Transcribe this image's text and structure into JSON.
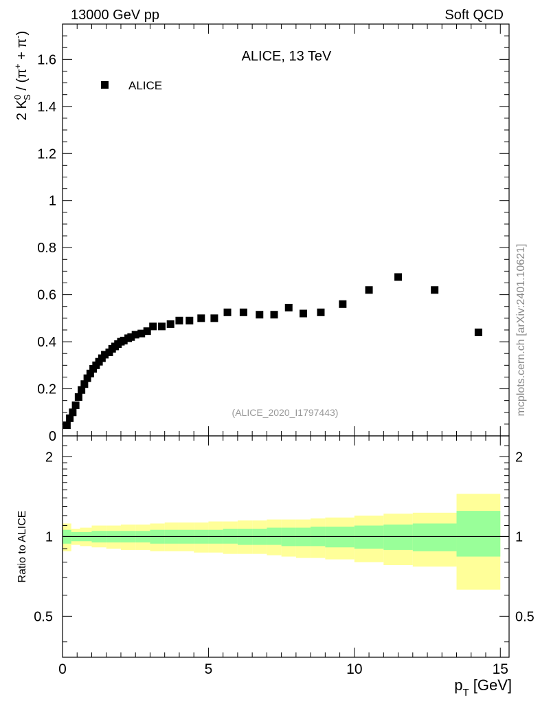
{
  "header": {
    "left": "13000 GeV pp",
    "right": "Soft QCD"
  },
  "side_label": "mcplots.cern.ch [arXiv:2401.10621]",
  "chart_data": [
    {
      "type": "scatter",
      "title": "ALICE, 13 TeV",
      "ylabel": {
        "prefix": "2 K",
        "sup_k": "0",
        "sub_k": "S",
        "mid": " / (π",
        "sup_plus": "+",
        "plus": " + π",
        "sup_minus": "-",
        "close": ")"
      },
      "xlim": [
        0,
        15.3
      ],
      "ylim": [
        0,
        1.75
      ],
      "yticks": [
        0,
        0.2,
        0.4,
        0.6,
        0.8,
        1,
        1.2,
        1.4,
        1.6
      ],
      "ytick_labels": [
        "0",
        "0.2",
        "0.4",
        "0.6",
        "0.8",
        "1",
        "1.2",
        "1.4",
        "1.6"
      ],
      "legend": {
        "label": "ALICE",
        "position": "top-left"
      },
      "watermark": "(ALICE_2020_I1797443)",
      "series": [
        {
          "name": "ALICE",
          "marker": "square",
          "color": "#000000",
          "x": [
            0.15,
            0.25,
            0.35,
            0.45,
            0.55,
            0.65,
            0.75,
            0.85,
            0.95,
            1.05,
            1.15,
            1.25,
            1.35,
            1.45,
            1.6,
            1.7,
            1.8,
            1.9,
            2.0,
            2.1,
            2.25,
            2.35,
            2.5,
            2.7,
            2.9,
            3.1,
            3.4,
            3.7,
            4.0,
            4.35,
            4.75,
            5.2,
            5.65,
            6.2,
            6.75,
            7.25,
            7.75,
            8.25,
            8.85,
            9.6,
            10.5,
            11.5,
            12.75,
            14.25
          ],
          "y": [
            0.045,
            0.075,
            0.1,
            0.13,
            0.165,
            0.195,
            0.22,
            0.245,
            0.265,
            0.285,
            0.3,
            0.315,
            0.33,
            0.345,
            0.355,
            0.37,
            0.38,
            0.39,
            0.4,
            0.405,
            0.415,
            0.42,
            0.43,
            0.435,
            0.445,
            0.465,
            0.465,
            0.475,
            0.49,
            0.49,
            0.5,
            0.5,
            0.525,
            0.525,
            0.515,
            0.515,
            0.545,
            0.52,
            0.525,
            0.56,
            0.62,
            0.675,
            0.62,
            0.44
          ]
        }
      ]
    },
    {
      "type": "area",
      "ylabel": "Ratio to ALICE",
      "xlabel": {
        "main": "p",
        "sub": "T",
        "unit": " [GeV]"
      },
      "xlim": [
        0,
        15.3
      ],
      "ylim": [
        0.35,
        2.4
      ],
      "yticks": [
        0.5,
        1,
        2
      ],
      "ytick_labels": [
        "0.5",
        "1",
        "2"
      ],
      "xticks": [
        0,
        5,
        10,
        15
      ],
      "xtick_labels": [
        "0",
        "5",
        "10",
        "15"
      ],
      "reference_line": 1,
      "bins": [
        0,
        0.3,
        0.6,
        1.0,
        1.5,
        2.0,
        2.5,
        3.0,
        3.5,
        4.0,
        4.5,
        5.0,
        5.5,
        6.0,
        6.5,
        7.0,
        7.5,
        8.0,
        8.5,
        9.0,
        10.0,
        11.0,
        12.0,
        13.5,
        15.0
      ],
      "stat_band": {
        "color": "#99ff99",
        "lower": [
          0.94,
          0.96,
          0.96,
          0.95,
          0.95,
          0.95,
          0.95,
          0.94,
          0.94,
          0.94,
          0.94,
          0.94,
          0.94,
          0.93,
          0.93,
          0.93,
          0.92,
          0.92,
          0.92,
          0.91,
          0.9,
          0.89,
          0.88,
          0.84
        ],
        "upper": [
          1.06,
          1.04,
          1.04,
          1.05,
          1.05,
          1.05,
          1.05,
          1.06,
          1.06,
          1.06,
          1.06,
          1.06,
          1.07,
          1.07,
          1.07,
          1.08,
          1.08,
          1.08,
          1.09,
          1.09,
          1.1,
          1.11,
          1.12,
          1.25
        ]
      },
      "total_band": {
        "color": "#ffff99",
        "lower": [
          0.88,
          0.93,
          0.92,
          0.91,
          0.9,
          0.89,
          0.89,
          0.88,
          0.88,
          0.88,
          0.87,
          0.87,
          0.86,
          0.86,
          0.86,
          0.85,
          0.84,
          0.83,
          0.83,
          0.82,
          0.8,
          0.78,
          0.77,
          0.63
        ],
        "upper": [
          1.12,
          1.07,
          1.08,
          1.1,
          1.1,
          1.11,
          1.11,
          1.12,
          1.13,
          1.13,
          1.13,
          1.14,
          1.14,
          1.15,
          1.15,
          1.16,
          1.16,
          1.16,
          1.17,
          1.18,
          1.2,
          1.22,
          1.23,
          1.45
        ]
      }
    }
  ]
}
